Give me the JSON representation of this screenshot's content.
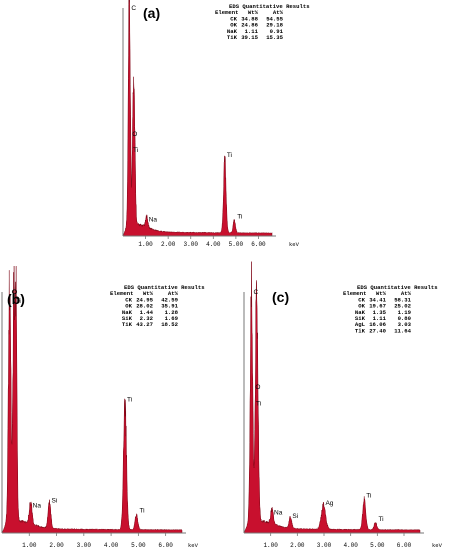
{
  "chart_data": [
    {
      "type": "line",
      "panel_label": "(a)",
      "xlabel": "keV",
      "x_ticks": [
        "1.00",
        "2.00",
        "3.00",
        "4.00",
        "5.00",
        "6.00"
      ],
      "xlim": [
        0,
        6.6
      ],
      "table": {
        "title": "EDS Quantitative Results",
        "headers": [
          "Element",
          "Wt%",
          "At%"
        ],
        "rows": [
          [
            "CK",
            "34.88",
            "54.55"
          ],
          [
            "OK",
            "24.86",
            "29.18"
          ],
          [
            "NaK",
            "1.11",
            "0.91"
          ],
          [
            "TiK",
            "39.15",
            "15.35"
          ]
        ]
      },
      "peaks": [
        {
          "label": "C",
          "kev": 0.28,
          "height": 1.0,
          "width": 0.045
        },
        {
          "label": "O",
          "kev": 0.5,
          "height": 0.42,
          "width": 0.045
        },
        {
          "label": "Ti",
          "kev": 0.45,
          "height": 0.39,
          "width": 0.04
        },
        {
          "label": "Na",
          "kev": 1.05,
          "height": 0.045,
          "width": 0.05
        },
        {
          "label": "Ti",
          "kev": 4.51,
          "height": 0.33,
          "width": 0.055
        },
        {
          "label": "Ti",
          "kev": 4.93,
          "height": 0.055,
          "width": 0.05
        }
      ]
    },
    {
      "type": "line",
      "panel_label": "(b)",
      "xlabel": "keV",
      "x_ticks": [
        "1.00",
        "2.00",
        "3.00",
        "4.00",
        "5.00",
        "6.00"
      ],
      "xlim": [
        0,
        6.6
      ],
      "table": {
        "title": "EDS Quantitative Results",
        "headers": [
          "Element",
          "Wt%",
          "At%"
        ],
        "rows": [
          [
            "CK",
            "24.95",
            "42.59"
          ],
          [
            "OK",
            "28.02",
            "35.91"
          ],
          [
            "NaK",
            "1.44",
            "1.28"
          ],
          [
            "SiK",
            "2.32",
            "1.69"
          ],
          [
            "TiK",
            "43.27",
            "18.52"
          ]
        ]
      },
      "peaks": [
        {
          "label": "C",
          "kev": 0.28,
          "height": 1.0,
          "width": 0.045
        },
        {
          "label": "O",
          "kev": 0.45,
          "height": 1.0,
          "width": 0.045
        },
        {
          "label": "Ti",
          "kev": 0.5,
          "height": 0.98,
          "width": 0.04
        },
        {
          "label": "Na",
          "kev": 1.05,
          "height": 0.09,
          "width": 0.05
        },
        {
          "label": "Si",
          "kev": 1.74,
          "height": 0.11,
          "width": 0.05
        },
        {
          "label": "Ti",
          "kev": 4.51,
          "height": 0.53,
          "width": 0.055
        },
        {
          "label": "Ti",
          "kev": 4.93,
          "height": 0.065,
          "width": 0.05
        }
      ]
    },
    {
      "type": "line",
      "panel_label": "(c)",
      "xlabel": "keV",
      "x_ticks": [
        "1.00",
        "2.00",
        "3.00",
        "4.00",
        "5.00",
        "6.00"
      ],
      "xlim": [
        0,
        6.6
      ],
      "table": {
        "title": "EDS Quantitative Results",
        "headers": [
          "Element",
          "Wt%",
          "At%"
        ],
        "rows": [
          [
            "CK",
            "34.41",
            "58.31"
          ],
          [
            "OK",
            "19.67",
            "25.02"
          ],
          [
            "NaK",
            "1.35",
            "1.19"
          ],
          [
            "SiK",
            "1.11",
            "0.80"
          ],
          [
            "AgL",
            "16.06",
            "3.03"
          ],
          [
            "TiK",
            "27.40",
            "11.64"
          ]
        ]
      },
      "peaks": [
        {
          "label": "C",
          "kev": 0.28,
          "height": 1.0,
          "width": 0.045
        },
        {
          "label": "O",
          "kev": 0.5,
          "height": 0.58,
          "width": 0.045
        },
        {
          "label": "Ti",
          "kev": 0.45,
          "height": 0.55,
          "width": 0.04
        },
        {
          "label": "Na",
          "kev": 1.05,
          "height": 0.06,
          "width": 0.05
        },
        {
          "label": "Si",
          "kev": 1.74,
          "height": 0.045,
          "width": 0.05
        },
        {
          "label": "Ag",
          "kev": 2.98,
          "height": 0.1,
          "width": 0.08
        },
        {
          "label": "Ti",
          "kev": 4.51,
          "height": 0.13,
          "width": 0.055
        },
        {
          "label": "Ti",
          "kev": 4.93,
          "height": 0.03,
          "width": 0.05
        }
      ]
    }
  ],
  "colors": {
    "fill": "#c8102e",
    "outline": "#7a0010",
    "axis": "#777777",
    "text": "#000000"
  }
}
